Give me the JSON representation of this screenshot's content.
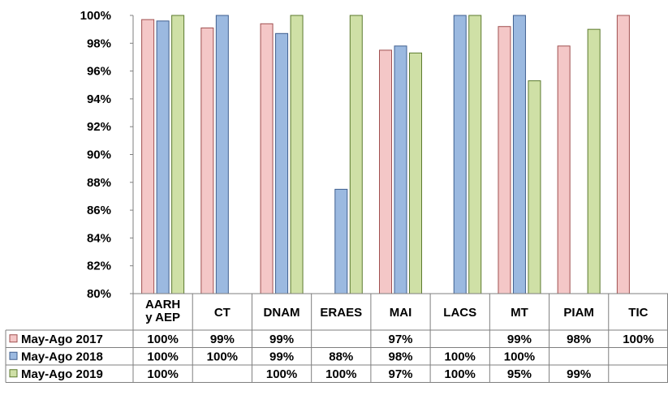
{
  "chart_data": {
    "type": "bar",
    "categories": [
      [
        "AARH",
        "y AEP"
      ],
      [
        "CT"
      ],
      [
        "DNAM"
      ],
      [
        "ERAES"
      ],
      [
        "MAI"
      ],
      [
        "LACS"
      ],
      [
        "MT"
      ],
      [
        "PIAM"
      ],
      [
        "TIC"
      ]
    ],
    "y_ticks": [
      "80%",
      "82%",
      "84%",
      "86%",
      "88%",
      "90%",
      "92%",
      "94%",
      "96%",
      "98%",
      "100%"
    ],
    "ylim": [
      80,
      100
    ],
    "grid": false,
    "legend": "data-table-left",
    "series": [
      {
        "name": "May-Ago 2017",
        "color": "#f4c7c7",
        "stroke": "#a05050",
        "values": [
          99.7,
          99.1,
          99.4,
          null,
          97.5,
          null,
          99.2,
          97.8,
          100
        ],
        "labels": [
          "100%",
          "99%",
          "99%",
          "",
          "97%",
          "",
          "99%",
          "98%",
          "100%"
        ]
      },
      {
        "name": "May-Ago 2018",
        "color": "#9bb9e0",
        "stroke": "#3f5f8f",
        "values": [
          99.6,
          100,
          98.7,
          87.5,
          97.8,
          100,
          100,
          null,
          null
        ],
        "labels": [
          "100%",
          "100%",
          "99%",
          "88%",
          "98%",
          "100%",
          "100%",
          "",
          ""
        ]
      },
      {
        "name": "May-Ago 2019",
        "color": "#cfe0a6",
        "stroke": "#5c7a2f",
        "values": [
          100,
          null,
          100,
          100,
          97.3,
          100,
          95.3,
          99.0,
          null
        ],
        "labels": [
          "100%",
          "",
          "100%",
          "100%",
          "97%",
          "100%",
          "95%",
          "99%",
          ""
        ]
      }
    ]
  }
}
